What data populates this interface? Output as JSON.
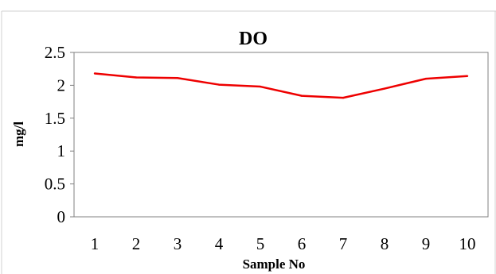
{
  "chart_data": {
    "type": "line",
    "title": "DO",
    "xlabel": "Sample No",
    "ylabel": "mg/l",
    "categories": [
      "1",
      "2",
      "3",
      "4",
      "5",
      "6",
      "7",
      "8",
      "9",
      "10"
    ],
    "series": [
      {
        "color": "#ee0000",
        "values": [
          2.18,
          2.12,
          2.11,
          2.01,
          1.98,
          1.84,
          1.81,
          1.95,
          2.1,
          2.14
        ]
      }
    ],
    "ylim": [
      0,
      2.5
    ],
    "yticks": [
      "0",
      "0.5",
      "1",
      "1.5",
      "2",
      "2.5"
    ],
    "grid": false,
    "legend": "none"
  }
}
